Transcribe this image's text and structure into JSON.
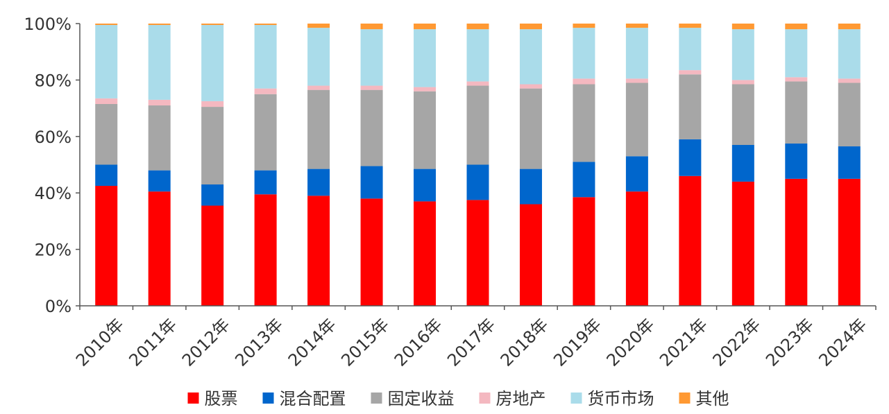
{
  "chart_data": {
    "type": "bar",
    "stacked": true,
    "categories": [
      "2010年",
      "2011年",
      "2012年",
      "2013年",
      "2014年",
      "2015年",
      "2016年",
      "2017年",
      "2018年",
      "2019年",
      "2020年",
      "2021年",
      "2022年",
      "2023年",
      "2024年"
    ],
    "series": [
      {
        "name": "股票",
        "color": "#ff0000",
        "values": [
          42.5,
          40.5,
          35.5,
          39.5,
          39,
          38,
          37,
          37.5,
          36,
          38.5,
          40.5,
          46,
          44,
          45,
          45
        ]
      },
      {
        "name": "混合配置",
        "color": "#0066cc",
        "values": [
          7.5,
          7.5,
          7.5,
          8.5,
          9.5,
          11.5,
          11.5,
          12.5,
          12.5,
          12.5,
          12.5,
          13,
          13,
          12.5,
          11.5
        ]
      },
      {
        "name": "固定收益",
        "color": "#a6a6a6",
        "values": [
          21.5,
          23,
          27.5,
          27,
          28,
          27,
          27.5,
          28,
          28.5,
          27.5,
          26,
          23,
          21.5,
          22,
          22.5
        ]
      },
      {
        "name": "房地产",
        "color": "#f4b8c0",
        "values": [
          2,
          2,
          2,
          2,
          1.5,
          1.5,
          1.5,
          1.5,
          1.5,
          2,
          1.5,
          1.5,
          1.5,
          1.5,
          1.5
        ]
      },
      {
        "name": "货币市场",
        "color": "#aadcea",
        "values": [
          26,
          26.5,
          27,
          22.5,
          20.5,
          20,
          20.5,
          18.5,
          19.5,
          18,
          18,
          15,
          18,
          17,
          17.5
        ]
      },
      {
        "name": "其他",
        "color": "#ff9933",
        "values": [
          0.5,
          0.5,
          0.5,
          0.5,
          1.5,
          2,
          2,
          2,
          2,
          1.5,
          1.5,
          1.5,
          2,
          2,
          2
        ]
      }
    ],
    "yaxis": {
      "ylim": [
        0,
        100
      ],
      "ticks": [
        0,
        20,
        40,
        60,
        80,
        100
      ],
      "tick_labels": [
        "0%",
        "20%",
        "40%",
        "60%",
        "80%",
        "100%"
      ]
    },
    "title": "",
    "xlabel": "",
    "ylabel": "",
    "grid": false,
    "legend_position": "bottom"
  }
}
